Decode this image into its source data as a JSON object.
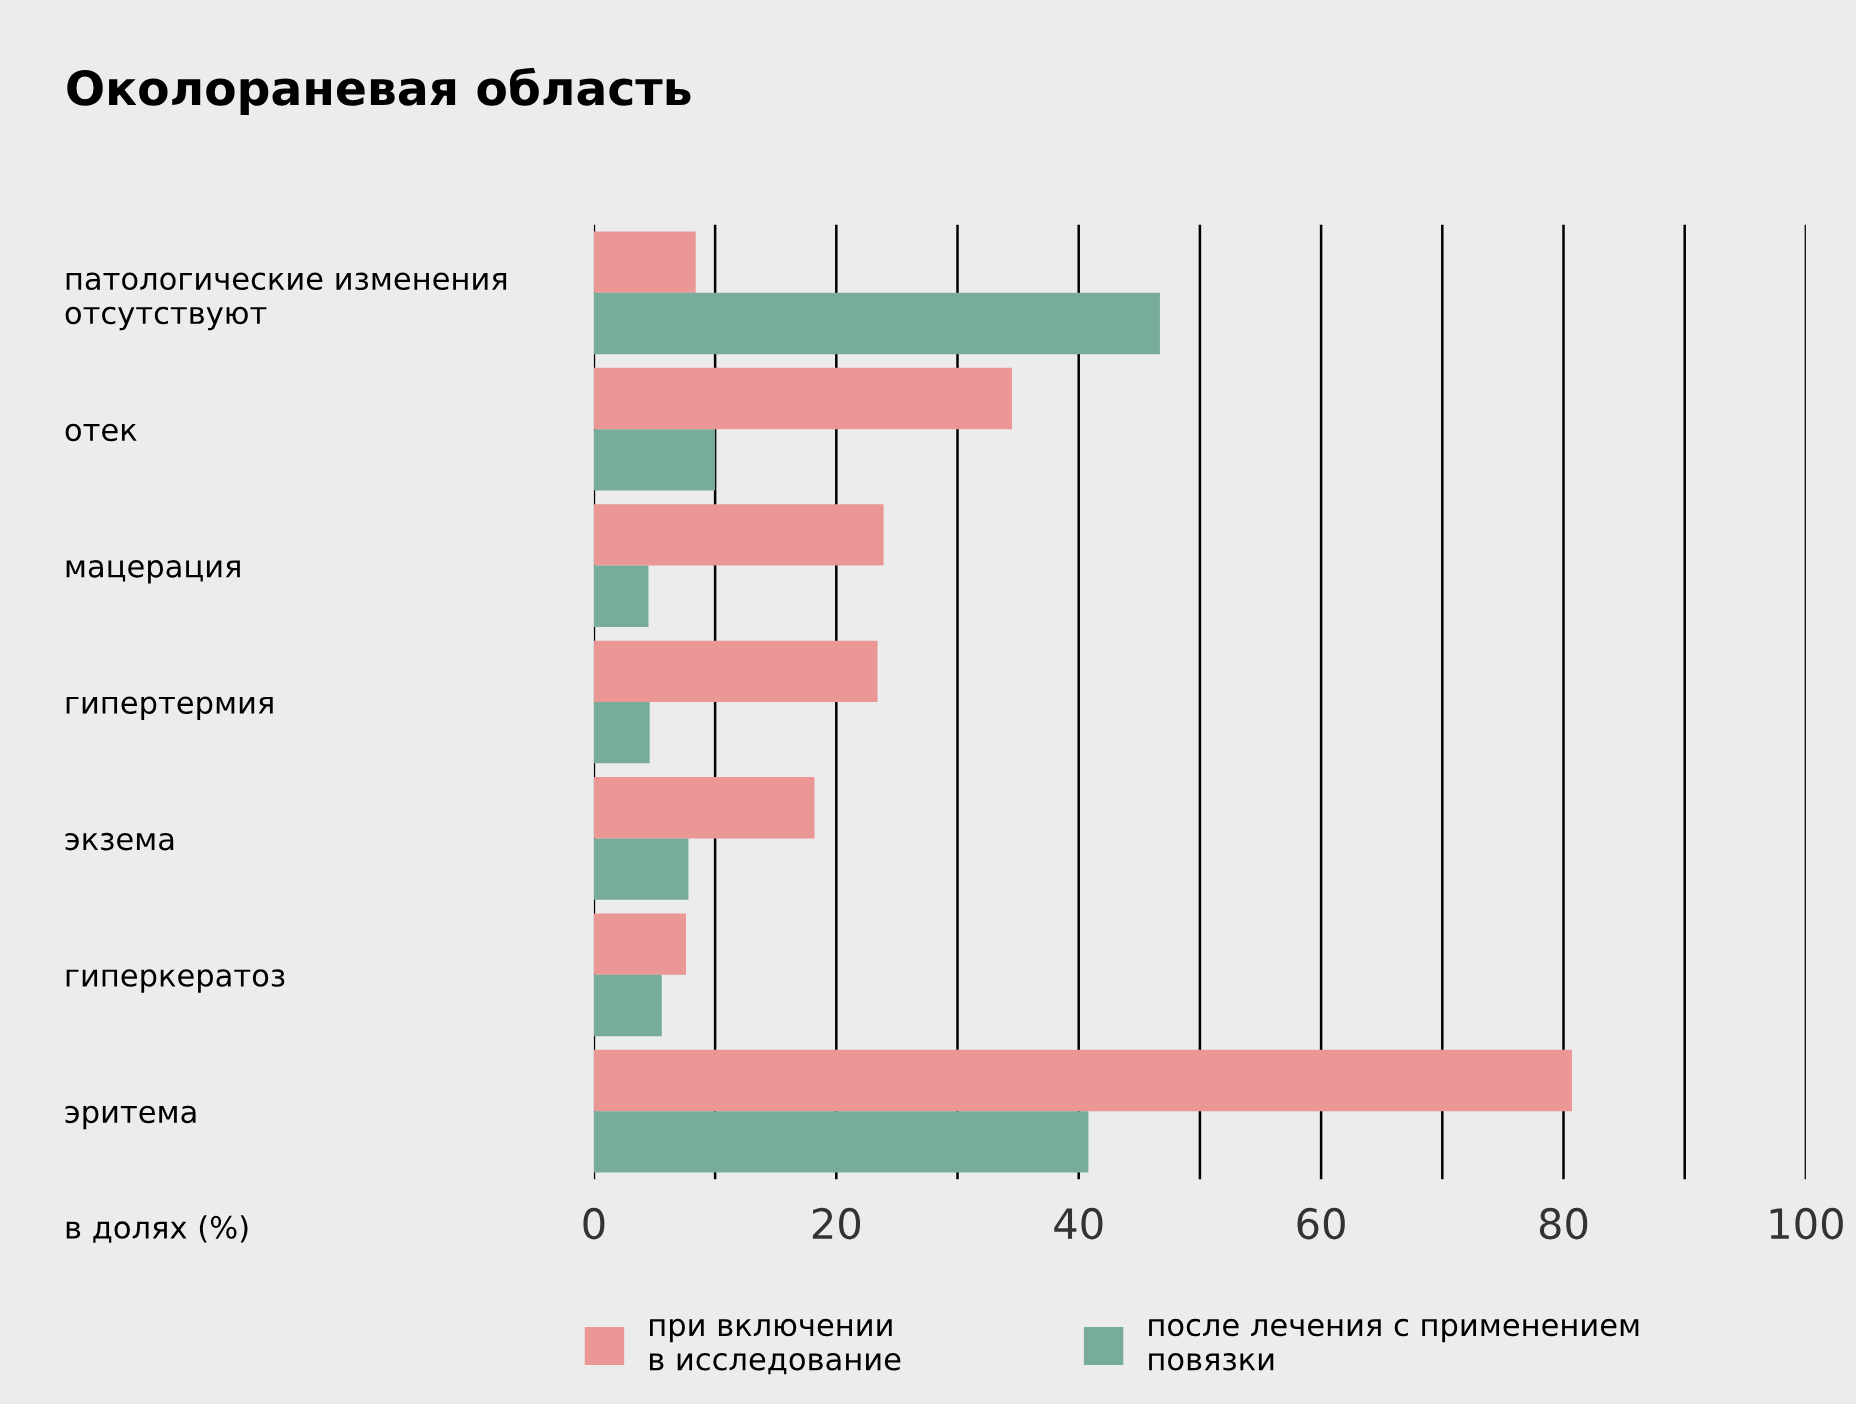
{
  "chart_data": {
    "type": "bar",
    "orientation": "horizontal",
    "title": "Околораневая область",
    "annotations": [
      "в долях (%)"
    ],
    "categories": [
      "патологические изменения\nотсутствуют",
      "отек",
      "мацерация",
      "гипертермия",
      "экзема",
      "гиперкератоз",
      "эритема"
    ],
    "series": [
      {
        "name": "при включении\nв исследование",
        "color": "#ea9796",
        "values": [
          8.4,
          34.5,
          23.9,
          23.4,
          18.2,
          7.6,
          80.7
        ]
      },
      {
        "name": "после лечения с применением\nповязки",
        "color": "#77ab9a",
        "values": [
          46.7,
          10,
          4.5,
          4.6,
          7.8,
          5.6,
          40.8
        ]
      }
    ],
    "xlim": [
      0,
      100
    ],
    "xticks": [
      0,
      {
        "value": 10,
        "label": null
      },
      20,
      {
        "value": 30,
        "label": null
      },
      40,
      {
        "value": 50,
        "label": null
      },
      60,
      {
        "value": 70,
        "label": null
      },
      80,
      {
        "value": 90,
        "label": null
      },
      100
    ],
    "grid": "x",
    "legend": "bottom"
  }
}
